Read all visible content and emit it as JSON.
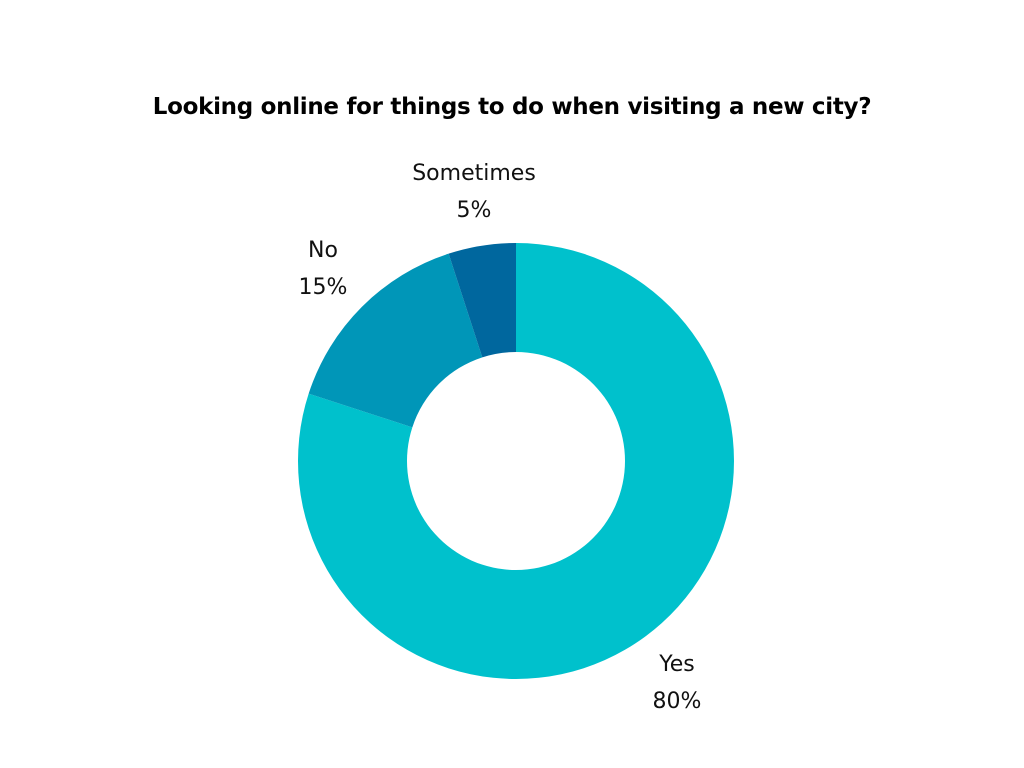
{
  "chart_data": {
    "type": "pie",
    "title": "Looking online for things to do when visiting a new city?",
    "categories": [
      "Yes",
      "No",
      "Sometimes"
    ],
    "values": [
      80,
      15,
      5
    ],
    "value_labels": [
      "80%",
      "15%",
      "5%"
    ],
    "unit": "%",
    "colors": [
      "#00C1CC",
      "#0096B8",
      "#00679E"
    ],
    "style": "donut",
    "legend": "none",
    "grid": false
  }
}
